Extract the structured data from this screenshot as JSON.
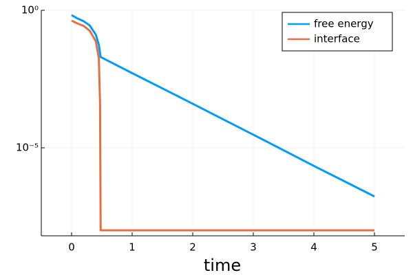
{
  "chart_data": {
    "type": "line",
    "x_label": "time",
    "x": [
      0,
      0.1,
      0.2,
      0.3,
      0.4,
      0.45,
      0.47,
      0.48,
      1,
      2,
      3,
      4,
      5
    ],
    "series": [
      {
        "name": "free energy",
        "color": "#009af9",
        "values": [
          0.67,
          0.5,
          0.4,
          0.28,
          0.13,
          0.056,
          0.028,
          0.02,
          0.0052,
          0.0004,
          3e-05,
          2.2e-06,
          1.7e-07
        ]
      },
      {
        "name": "interface",
        "color": "#e26f46",
        "values": [
          0.42,
          0.33,
          0.27,
          0.18,
          0.075,
          0.018,
          0.0004,
          1e-08,
          1e-08,
          1e-08,
          1e-08,
          1e-08,
          1e-08
        ]
      }
    ],
    "xlim": [
      -0.5,
      5.5
    ],
    "xticks": [
      0,
      1,
      2,
      3,
      4,
      5
    ],
    "ylim": [
      6.3e-09,
      1
    ],
    "yticks": [
      {
        "value": 1,
        "label": "10⁰"
      },
      {
        "value": 1e-05,
        "label": "10⁻⁵"
      }
    ],
    "yscale": "log",
    "grid": true,
    "legend_position": "top-right"
  }
}
